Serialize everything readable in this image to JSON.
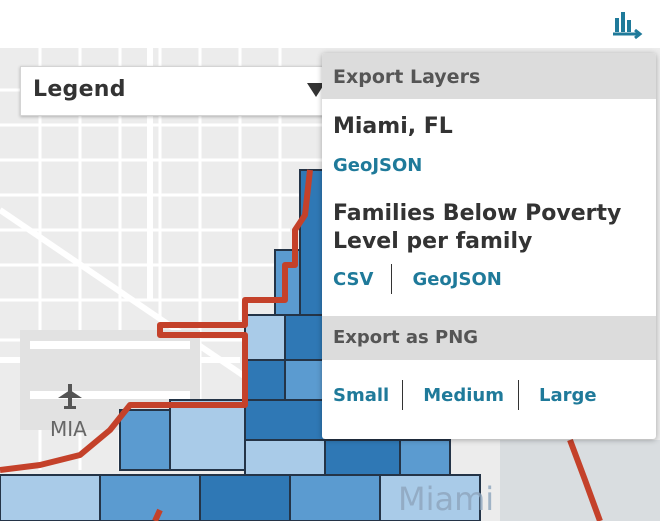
{
  "toolbar": {
    "export_icon": "chart-export-icon"
  },
  "legend": {
    "title": "Legend",
    "toggle_icon": "caret-down-icon"
  },
  "export_panel": {
    "header": "Export Layers",
    "layers": [
      {
        "title": "Miami, FL",
        "formats": [
          "GeoJSON"
        ]
      },
      {
        "title": "Families Below Poverty Level per family",
        "formats": [
          "CSV",
          "GeoJSON"
        ]
      }
    ],
    "png_header": "Export as PNG",
    "png_sizes": [
      "Small",
      "Medium",
      "Large"
    ]
  },
  "map": {
    "airport_code": "MIA",
    "city_label": "Miami",
    "airport_icon": "airplane-icon",
    "colors": {
      "boundary": "#c4412a",
      "choropleth_dark": "#2f78b5",
      "choropleth_mid": "#5b9bd0",
      "choropleth_light": "#a9cbe8",
      "background": "#ececec",
      "link": "#1f7a9a"
    }
  }
}
